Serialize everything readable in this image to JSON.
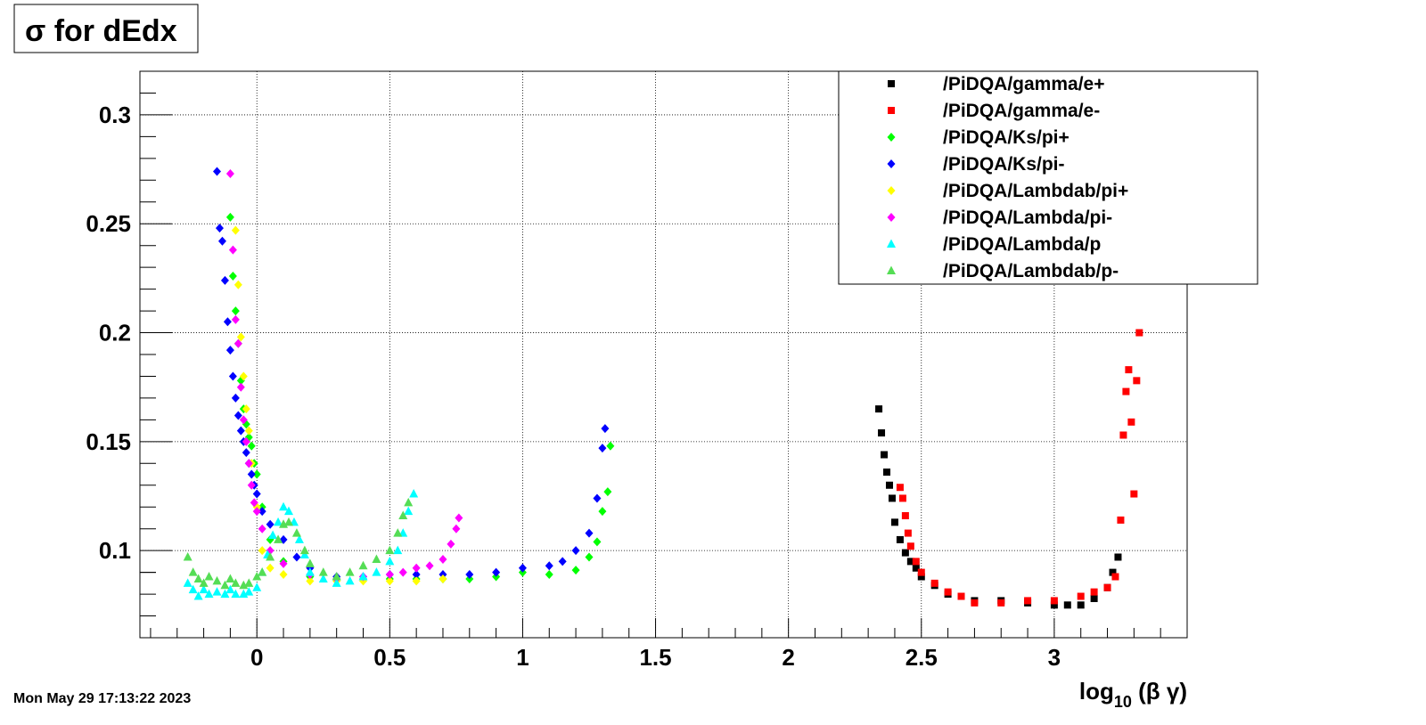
{
  "chart_data": {
    "type": "scatter",
    "title": "σ for dEdx",
    "xlabel": "log₁₀ (β γ)",
    "ylabel": "",
    "xlim": [
      -0.44,
      3.5
    ],
    "ylim": [
      0.06,
      0.32
    ],
    "grid": true,
    "legend_position": "top-right",
    "x_ticks": [
      "0",
      "0.5",
      "1",
      "1.5",
      "2",
      "2.5",
      "3"
    ],
    "y_ticks": [
      "0.1",
      "0.15",
      "0.2",
      "0.25",
      "0.3"
    ],
    "series": [
      {
        "name": "/PiDQA/gamma/e+",
        "color": "#000000",
        "marker": "square",
        "x": [
          2.34,
          2.35,
          2.36,
          2.37,
          2.38,
          2.39,
          2.4,
          2.42,
          2.44,
          2.46,
          2.48,
          2.5,
          2.55,
          2.6,
          2.7,
          2.8,
          2.9,
          3.0,
          3.05,
          3.1,
          3.15,
          3.2,
          3.22,
          3.24
        ],
        "y": [
          0.165,
          0.154,
          0.144,
          0.136,
          0.13,
          0.124,
          0.113,
          0.105,
          0.099,
          0.095,
          0.092,
          0.088,
          0.084,
          0.08,
          0.077,
          0.077,
          0.076,
          0.075,
          0.075,
          0.075,
          0.078,
          0.083,
          0.09,
          0.097
        ]
      },
      {
        "name": "/PiDQA/gamma/e-",
        "color": "#ff0000",
        "marker": "square",
        "x": [
          2.42,
          2.43,
          2.44,
          2.45,
          2.46,
          2.48,
          2.5,
          2.55,
          2.6,
          2.65,
          2.7,
          2.8,
          2.9,
          3.0,
          3.1,
          3.15,
          3.2,
          3.23,
          3.25,
          3.26,
          3.27,
          3.28,
          3.29,
          3.3,
          3.31,
          3.32
        ],
        "y": [
          0.129,
          0.124,
          0.116,
          0.108,
          0.102,
          0.095,
          0.09,
          0.085,
          0.081,
          0.079,
          0.076,
          0.076,
          0.077,
          0.077,
          0.079,
          0.081,
          0.083,
          0.088,
          0.114,
          0.153,
          0.173,
          0.183,
          0.159,
          0.126,
          0.178,
          0.2
        ]
      },
      {
        "name": "/PiDQA/Ks/pi+",
        "color": "#00ff00",
        "marker": "diamond",
        "x": [
          -0.1,
          -0.09,
          -0.08,
          -0.07,
          -0.06,
          -0.05,
          -0.04,
          -0.03,
          -0.02,
          -0.01,
          0.0,
          0.02,
          0.05,
          0.1,
          0.2,
          0.3,
          0.4,
          0.5,
          0.6,
          0.7,
          0.8,
          0.9,
          1.0,
          1.1,
          1.2,
          1.25,
          1.28,
          1.3,
          1.32,
          1.33
        ],
        "y": [
          0.253,
          0.226,
          0.21,
          0.195,
          0.178,
          0.165,
          0.158,
          0.152,
          0.148,
          0.14,
          0.135,
          0.12,
          0.105,
          0.095,
          0.088,
          0.087,
          0.087,
          0.087,
          0.087,
          0.087,
          0.087,
          0.088,
          0.09,
          0.089,
          0.091,
          0.097,
          0.104,
          0.118,
          0.127,
          0.148
        ]
      },
      {
        "name": "/PiDQA/Ks/pi-",
        "color": "#0000ff",
        "marker": "diamond",
        "x": [
          -0.15,
          -0.14,
          -0.13,
          -0.12,
          -0.11,
          -0.1,
          -0.09,
          -0.08,
          -0.07,
          -0.06,
          -0.05,
          -0.04,
          -0.03,
          -0.02,
          -0.01,
          0.0,
          0.02,
          0.05,
          0.1,
          0.15,
          0.2,
          0.3,
          0.4,
          0.5,
          0.6,
          0.7,
          0.8,
          0.9,
          1.0,
          1.1,
          1.15,
          1.2,
          1.25,
          1.28,
          1.3,
          1.31
        ],
        "y": [
          0.274,
          0.248,
          0.242,
          0.224,
          0.205,
          0.192,
          0.18,
          0.17,
          0.162,
          0.155,
          0.15,
          0.145,
          0.14,
          0.135,
          0.13,
          0.126,
          0.118,
          0.112,
          0.105,
          0.097,
          0.092,
          0.088,
          0.088,
          0.089,
          0.089,
          0.089,
          0.089,
          0.09,
          0.092,
          0.093,
          0.095,
          0.1,
          0.108,
          0.124,
          0.147,
          0.156
        ]
      },
      {
        "name": "/PiDQA/Lambdab/pi+",
        "color": "#ffff00",
        "marker": "diamond",
        "x": [
          -0.08,
          -0.07,
          -0.06,
          -0.05,
          -0.04,
          -0.03,
          -0.02,
          0.0,
          0.02,
          0.05,
          0.1,
          0.2,
          0.3,
          0.4,
          0.5,
          0.6,
          0.7
        ],
        "y": [
          0.247,
          0.222,
          0.198,
          0.18,
          0.165,
          0.155,
          0.14,
          0.12,
          0.1,
          0.092,
          0.089,
          0.086,
          0.086,
          0.086,
          0.086,
          0.086,
          0.087
        ]
      },
      {
        "name": "/PiDQA/Lambda/pi-",
        "color": "#ff00ff",
        "marker": "diamond",
        "x": [
          -0.1,
          -0.09,
          -0.08,
          -0.07,
          -0.06,
          -0.05,
          -0.04,
          -0.03,
          -0.02,
          -0.01,
          0.0,
          0.02,
          0.05,
          0.1,
          0.2,
          0.3,
          0.4,
          0.5,
          0.55,
          0.6,
          0.65,
          0.7,
          0.73,
          0.75,
          0.76
        ],
        "y": [
          0.273,
          0.238,
          0.206,
          0.195,
          0.175,
          0.16,
          0.15,
          0.14,
          0.13,
          0.122,
          0.118,
          0.11,
          0.1,
          0.094,
          0.089,
          0.087,
          0.088,
          0.089,
          0.09,
          0.092,
          0.093,
          0.096,
          0.103,
          0.11,
          0.115
        ]
      },
      {
        "name": "/PiDQA/Lambda/p",
        "color": "#00ffff",
        "marker": "triangle",
        "x": [
          -0.26,
          -0.24,
          -0.22,
          -0.2,
          -0.18,
          -0.15,
          -0.12,
          -0.1,
          -0.08,
          -0.05,
          -0.03,
          0.0,
          0.02,
          0.04,
          0.06,
          0.08,
          0.1,
          0.12,
          0.14,
          0.16,
          0.18,
          0.2,
          0.25,
          0.3,
          0.35,
          0.4,
          0.45,
          0.5,
          0.53,
          0.55,
          0.57,
          0.59
        ],
        "y": [
          0.085,
          0.082,
          0.079,
          0.082,
          0.08,
          0.081,
          0.08,
          0.082,
          0.08,
          0.08,
          0.081,
          0.083,
          0.09,
          0.098,
          0.107,
          0.113,
          0.12,
          0.118,
          0.113,
          0.105,
          0.098,
          0.09,
          0.087,
          0.085,
          0.086,
          0.088,
          0.09,
          0.095,
          0.1,
          0.108,
          0.118,
          0.126
        ]
      },
      {
        "name": "/PiDQA/Lambdab/p-",
        "color": "#55dd55",
        "marker": "triangle",
        "x": [
          -0.26,
          -0.24,
          -0.22,
          -0.2,
          -0.18,
          -0.15,
          -0.12,
          -0.1,
          -0.08,
          -0.05,
          -0.03,
          0.0,
          0.02,
          0.05,
          0.08,
          0.1,
          0.12,
          0.15,
          0.18,
          0.2,
          0.25,
          0.3,
          0.35,
          0.4,
          0.45,
          0.5,
          0.53,
          0.55,
          0.57
        ],
        "y": [
          0.097,
          0.09,
          0.087,
          0.085,
          0.088,
          0.086,
          0.084,
          0.087,
          0.085,
          0.084,
          0.085,
          0.088,
          0.09,
          0.097,
          0.105,
          0.112,
          0.113,
          0.108,
          0.1,
          0.094,
          0.09,
          0.088,
          0.09,
          0.093,
          0.096,
          0.1,
          0.108,
          0.116,
          0.122
        ]
      }
    ]
  },
  "footer": {
    "timestamp": "Mon May 29 17:13:22 2023"
  }
}
